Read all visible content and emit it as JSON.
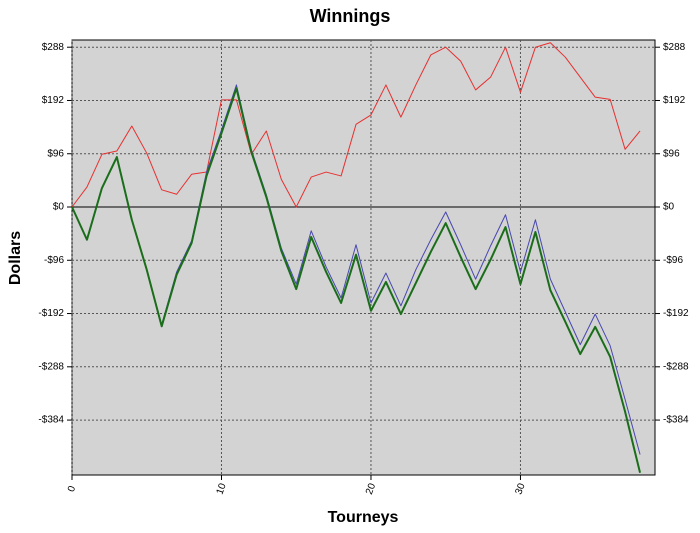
{
  "chart_data": {
    "type": "line",
    "title": "Winnings",
    "x_label": "Tourneys",
    "y_label": "Dollars",
    "x": [
      0,
      1,
      2,
      3,
      4,
      5,
      6,
      7,
      8,
      9,
      10,
      11,
      12,
      13,
      14,
      15,
      16,
      17,
      18,
      19,
      20,
      21,
      22,
      23,
      24,
      25,
      26,
      27,
      28,
      29,
      30,
      31,
      32,
      33,
      34,
      35,
      36,
      37,
      38
    ],
    "series": [
      {
        "color": "#e83030",
        "width": 1,
        "values": [
          0,
          36,
          95,
          101,
          146,
          97,
          31,
          23,
          59,
          63,
          193,
          193,
          95,
          137,
          50,
          0,
          54,
          63,
          56,
          149,
          166,
          220,
          162,
          220,
          274,
          288,
          263,
          211,
          234,
          288,
          207,
          288,
          296,
          270,
          234,
          198,
          194,
          104,
          137
        ]
      },
      {
        "color": "#4848b0",
        "width": 1,
        "values": [
          0,
          -59,
          34,
          90,
          -23,
          -113,
          -212,
          -117,
          -61,
          63,
          139,
          220,
          103,
          22,
          -74,
          -139,
          -43,
          -108,
          -164,
          -68,
          -173,
          -119,
          -178,
          -113,
          -59,
          -9,
          -68,
          -130,
          -70,
          -14,
          -117,
          -23,
          -130,
          -189,
          -248,
          -193,
          -250,
          -347,
          -446
        ]
      },
      {
        "color": "#1a6e1a",
        "width": 2,
        "values": [
          0,
          -59,
          34,
          90,
          -23,
          -113,
          -215,
          -122,
          -65,
          56,
          133,
          214,
          99,
          18,
          -79,
          -148,
          -54,
          -117,
          -173,
          -86,
          -187,
          -135,
          -193,
          -137,
          -81,
          -29,
          -90,
          -148,
          -95,
          -36,
          -139,
          -45,
          -150,
          -207,
          -265,
          -216,
          -270,
          -369,
          -479
        ]
      }
    ],
    "xlim": [
      0,
      39
    ],
    "xticks": [
      0,
      10,
      20,
      30
    ],
    "ylim": [
      -483,
      301
    ],
    "yticks": [
      {
        "value": -384,
        "label": "-$384"
      },
      {
        "value": -288,
        "label": "-$288"
      },
      {
        "value": -192,
        "label": "-$192"
      },
      {
        "value": -96,
        "label": "-$96"
      },
      {
        "value": 0,
        "label": "$0"
      },
      {
        "value": 96,
        "label": "$96"
      },
      {
        "value": 192,
        "label": "$192"
      },
      {
        "value": 288,
        "label": "$288"
      }
    ],
    "grid": true,
    "background": "#d3d3d3"
  }
}
